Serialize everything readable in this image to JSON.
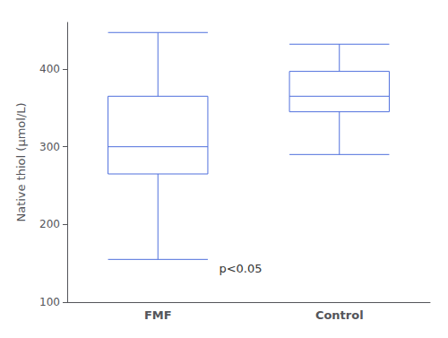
{
  "chart_data": {
    "type": "box",
    "ylabel": "Native thiol (μmol/L)",
    "categories": [
      "FMF",
      "Control"
    ],
    "whisker_low": [
      155,
      290
    ],
    "q1": [
      265,
      345
    ],
    "median": [
      300,
      365
    ],
    "q3": [
      365,
      397
    ],
    "whisker_high": [
      447,
      432
    ],
    "ylim": [
      100,
      460
    ],
    "yticks": [
      100,
      200,
      300,
      400
    ],
    "grid": false,
    "annotation": "p<0.05"
  }
}
